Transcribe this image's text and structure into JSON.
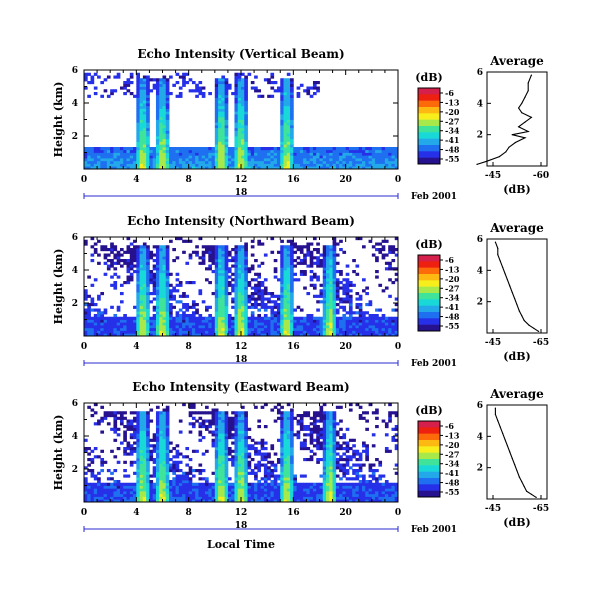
{
  "x_axis": {
    "ticks": [
      "0",
      "4",
      "8",
      "12",
      "16",
      "20",
      "0"
    ],
    "day_label": "18",
    "date_label": "Feb 2001",
    "label": "Local Time"
  },
  "colorbar": {
    "unit": "(dB)",
    "ticks": [
      "-6",
      "-13",
      "-20",
      "-27",
      "-34",
      "-41",
      "-48",
      "-55"
    ],
    "colors": [
      "#d4204a",
      "#ee2010",
      "#fd6a0a",
      "#fdb912",
      "#f7ee1c",
      "#a7e94a",
      "#40e39a",
      "#18d8d8",
      "#23a9e9",
      "#1e70f0",
      "#2630e8",
      "#26118e"
    ]
  },
  "average_title": "Average",
  "average_xlabel": "(dB)",
  "chart_data": [
    {
      "type": "heatmap",
      "title": "Echo Intensity (Vertical Beam)",
      "ylabel": "Height (km)",
      "xlim": [
        0,
        24
      ],
      "ylim": [
        0,
        6
      ],
      "yticks": [
        "2",
        "4",
        "6"
      ],
      "zlim": [
        -55,
        -6
      ],
      "zunit": "dB",
      "bright_columns_local_time": [
        4.5,
        6,
        10.5,
        12,
        15.5
      ]
    },
    {
      "type": "line",
      "title": "Average",
      "xlabel": "(dB)",
      "xticks": [
        "-45",
        "-60"
      ],
      "yticks": [
        "2",
        "4",
        "6"
      ],
      "ylim": [
        0,
        6
      ],
      "x": [
        -40,
        -43,
        -47,
        -49,
        -50,
        -52,
        -55,
        -51,
        -56,
        -53,
        -55,
        -57,
        -54,
        -53,
        -54,
        -55,
        -56,
        -56,
        -57
      ],
      "y": [
        0.1,
        0.3,
        0.6,
        0.9,
        1.2,
        1.5,
        1.8,
        2.0,
        2.2,
        2.5,
        2.8,
        3.1,
        3.4,
        3.7,
        4.0,
        4.4,
        4.8,
        5.3,
        5.8
      ]
    },
    {
      "type": "heatmap",
      "title": "Echo Intensity (Northward Beam)",
      "ylabel": "Height (km)",
      "xlim": [
        0,
        24
      ],
      "ylim": [
        0,
        6
      ],
      "yticks": [
        "2",
        "4",
        "6"
      ],
      "zlim": [
        -55,
        -6
      ],
      "zunit": "dB",
      "bright_columns_local_time": [
        4.5,
        6,
        10.5,
        12,
        15.5,
        18.8
      ]
    },
    {
      "type": "line",
      "title": "Average",
      "xlabel": "(dB)",
      "xticks": [
        "-45",
        "-65"
      ],
      "yticks": [
        "2",
        "4",
        "6"
      ],
      "ylim": [
        0,
        6
      ],
      "x": [
        -64,
        -62,
        -60,
        -58,
        -57,
        -56,
        -55,
        -54,
        -53,
        -52,
        -51,
        -50,
        -49,
        -48,
        -47,
        -47,
        -46
      ],
      "y": [
        0.1,
        0.3,
        0.5,
        0.8,
        1.1,
        1.4,
        1.8,
        2.2,
        2.6,
        3.0,
        3.4,
        3.8,
        4.2,
        4.6,
        5.0,
        5.4,
        5.8
      ]
    },
    {
      "type": "heatmap",
      "title": "Echo Intensity (Eastward Beam)",
      "ylabel": "Height (km)",
      "xlim": [
        0,
        24
      ],
      "ylim": [
        0,
        6
      ],
      "yticks": [
        "2",
        "4",
        "6"
      ],
      "zlim": [
        -55,
        -6
      ],
      "zunit": "dB",
      "bright_columns_local_time": [
        4.5,
        6,
        10.5,
        12,
        15.5,
        18.8
      ]
    },
    {
      "type": "line",
      "title": "Average",
      "xlabel": "(dB)",
      "xticks": [
        "-45",
        "-65"
      ],
      "yticks": [
        "2",
        "4",
        "6"
      ],
      "ylim": [
        0,
        6
      ],
      "x": [
        -63,
        -61,
        -59,
        -58,
        -57,
        -56,
        -55,
        -54,
        -53,
        -52,
        -51,
        -50,
        -49,
        -48,
        -47,
        -46,
        -46
      ],
      "y": [
        0.1,
        0.3,
        0.5,
        0.8,
        1.1,
        1.4,
        1.8,
        2.2,
        2.6,
        3.0,
        3.4,
        3.8,
        4.2,
        4.6,
        5.0,
        5.4,
        5.8
      ]
    }
  ]
}
